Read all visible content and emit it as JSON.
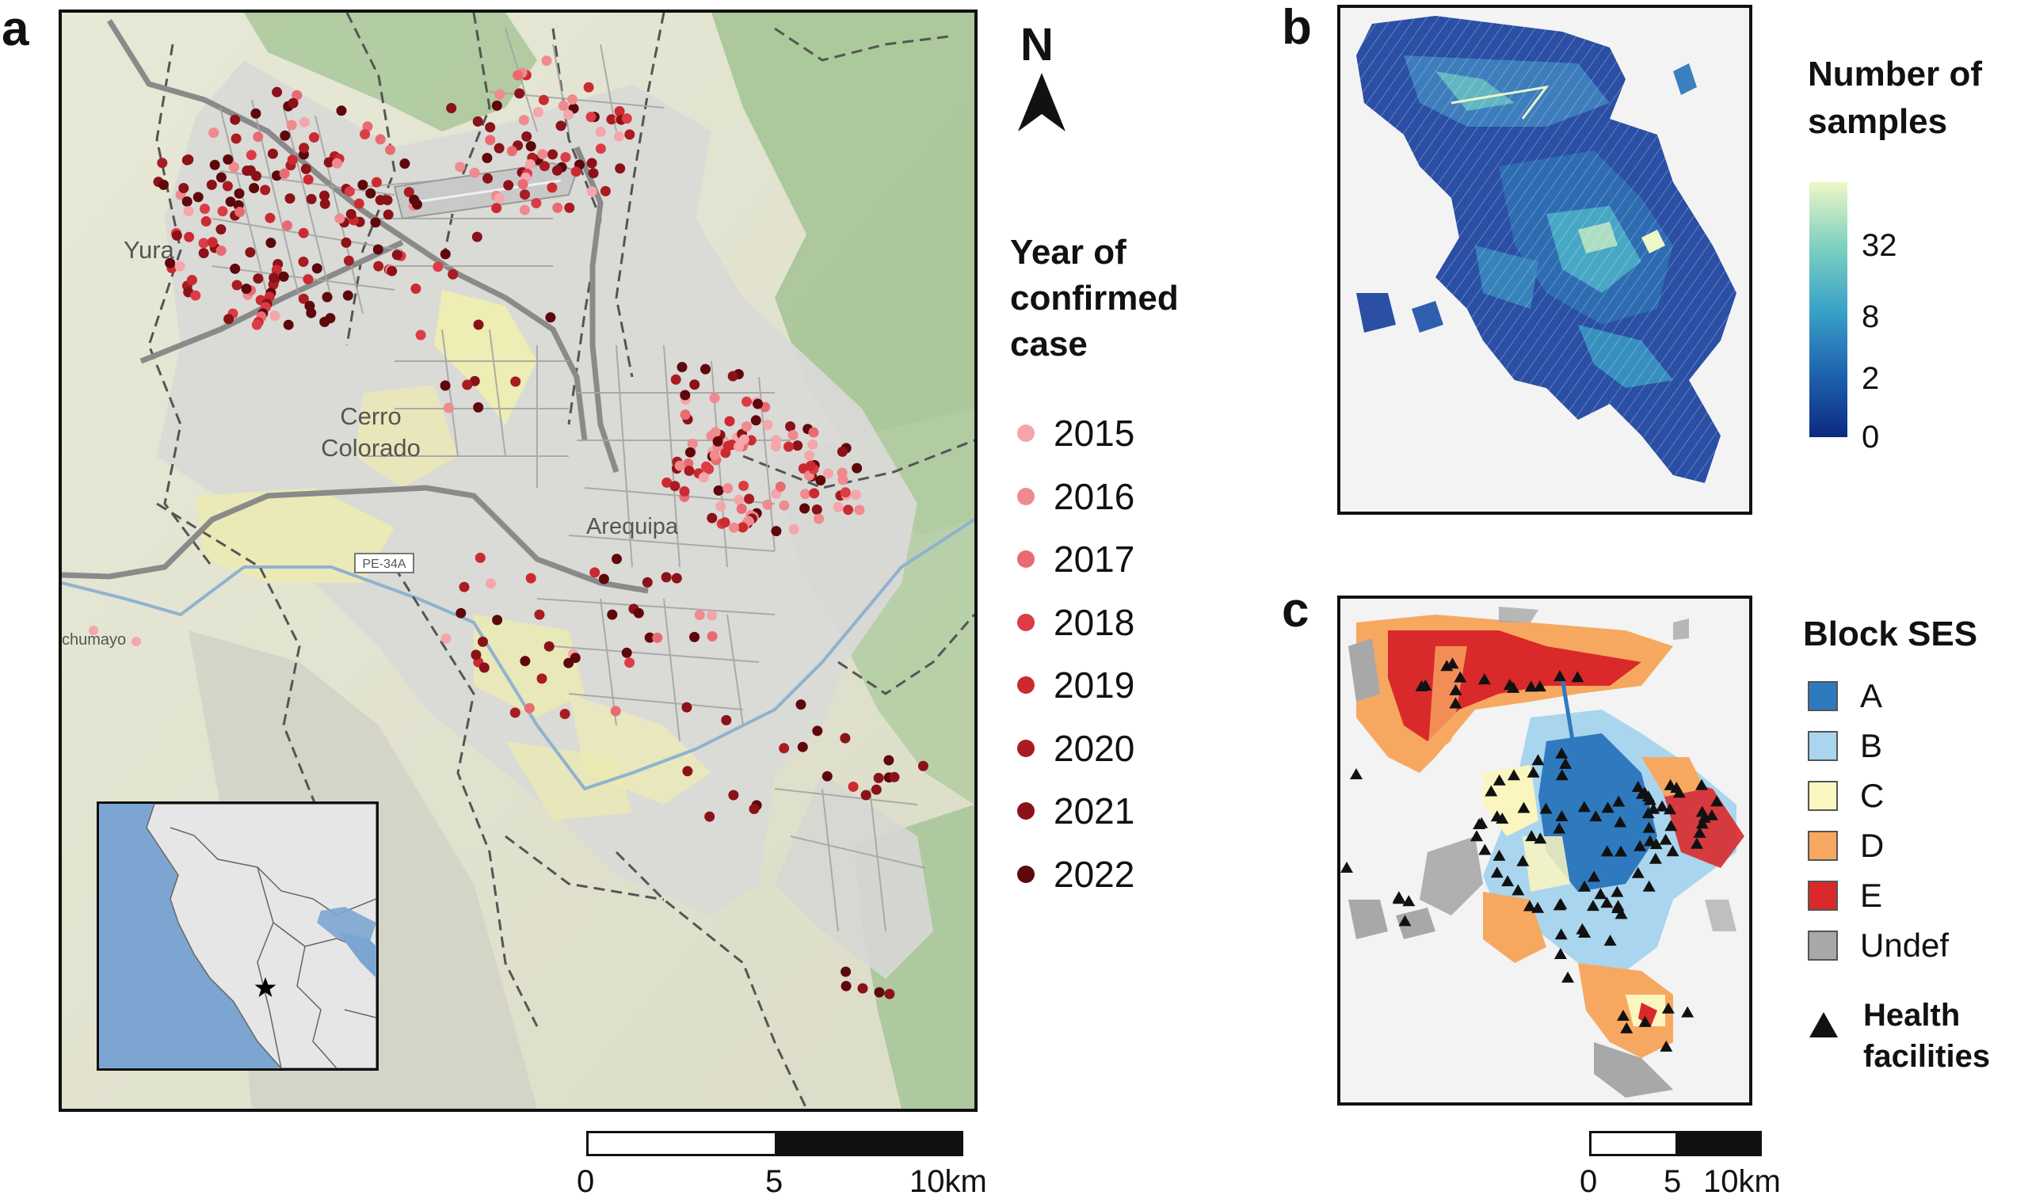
{
  "panels": {
    "a": {
      "letter": "a",
      "place_labels": {
        "yura": "Yura",
        "cerro_colorado": "Cerro\nColorado",
        "cerro": "Cerro",
        "colorado": "Colorado",
        "arequipa": "Arequipa",
        "road_shield": "PE-34A",
        "uchumayo": "chumayo"
      },
      "north_label": "N",
      "legend": {
        "title_lines": [
          "Year of",
          "confirmed",
          "case"
        ],
        "items": [
          {
            "label": "2015",
            "color": "#f4a6aa"
          },
          {
            "label": "2016",
            "color": "#ef8a8f"
          },
          {
            "label": "2017",
            "color": "#e96b72"
          },
          {
            "label": "2018",
            "color": "#dc3c45"
          },
          {
            "label": "2019",
            "color": "#cc2a31"
          },
          {
            "label": "2020",
            "color": "#a81c22"
          },
          {
            "label": "2021",
            "color": "#8a1218"
          },
          {
            "label": "2022",
            "color": "#5e080c"
          }
        ]
      },
      "scalebar": {
        "labels": [
          "0",
          "5",
          "10km"
        ]
      }
    },
    "b": {
      "letter": "b",
      "legend": {
        "title_lines": [
          "Number of",
          "samples"
        ],
        "ticks": [
          "32",
          "8",
          "2",
          "0"
        ],
        "colors": [
          "#0b2a80",
          "#1f63b0",
          "#3aa3c8",
          "#7fd0c0",
          "#eef7c6"
        ]
      }
    },
    "c": {
      "letter": "c",
      "legend": {
        "title": "Block SES",
        "items": [
          {
            "label": "A",
            "color": "#2f79bf"
          },
          {
            "label": "B",
            "color": "#a9d6ee"
          },
          {
            "label": "C",
            "color": "#fbf6c0"
          },
          {
            "label": "D",
            "color": "#f7a860"
          },
          {
            "label": "E",
            "color": "#d9292b"
          },
          {
            "label": "Undef",
            "color": "#a8a8a8"
          }
        ],
        "facility_lines": [
          "Health",
          "facilities"
        ]
      },
      "scalebar": {
        "labels": [
          "0",
          "5",
          "10km"
        ]
      }
    }
  }
}
